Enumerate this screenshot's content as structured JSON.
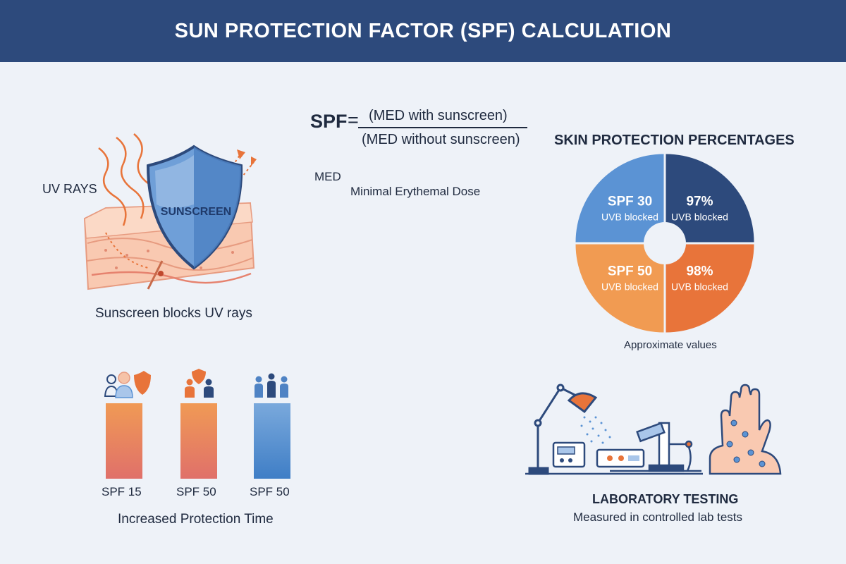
{
  "header": {
    "title": "SUN PROTECTION FACTOR (SPF) CALCULATION"
  },
  "formula": {
    "lhs": "SPF",
    "equals": "=",
    "numerator": "(MED with sunscreen)",
    "denominator": "(MED without sunscreen)",
    "abbreviation": "MED",
    "definition": "Minimal Erythemal Dose"
  },
  "skin_illustration": {
    "uv_label": "UV RAYS",
    "shield_label": "SUNSCREEN",
    "caption": "Sunscreen blocks UV rays"
  },
  "chart_data": {
    "type": "pie",
    "title": "SKIN PROTECTION PERCENTAGES",
    "note": "Approximate values",
    "slices": [
      {
        "line1": "SPF 30",
        "line2": "UVB blocked",
        "color": "#5b93d4"
      },
      {
        "line1": "97%",
        "line2": "UVB blocked",
        "color": "#2d4a7c"
      },
      {
        "line1": "98%",
        "line2": "UVB blocked",
        "color": "#e8743a"
      },
      {
        "line1": "SPF 50",
        "line2": "UVB blocked",
        "color": "#f19b52"
      }
    ]
  },
  "protection_time": {
    "caption": "Increased Protection Time",
    "bars": [
      {
        "label": "SPF 15",
        "color_top": "#f09a55",
        "color_bottom": "#e0706a"
      },
      {
        "label": "SPF 50",
        "color_top": "#f09a55",
        "color_bottom": "#e0706a"
      },
      {
        "label": "SPF 50",
        "color_top": "#7aa9dc",
        "color_bottom": "#3f7ec6"
      }
    ]
  },
  "lab": {
    "title": "LABORATORY TESTING",
    "subtitle": "Measured in controlled lab tests"
  },
  "colors": {
    "header": "#2d4a7c",
    "background": "#eef2f8",
    "orange": "#e8743a",
    "blue": "#2d4a7c",
    "light_blue": "#5b93d4"
  }
}
